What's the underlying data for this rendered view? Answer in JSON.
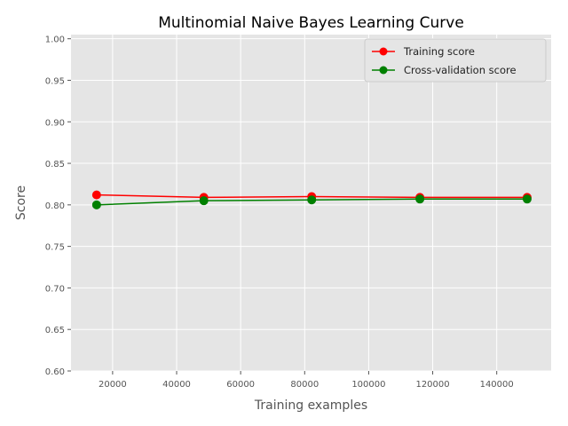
{
  "chart_data": {
    "type": "line",
    "title": "Multinomial Naive Bayes Learning Curve",
    "xlabel": "Training examples",
    "ylabel": "Score",
    "xlim": [
      7000,
      157000
    ],
    "ylim": [
      0.6,
      1.005
    ],
    "xticks": [
      20000,
      40000,
      60000,
      80000,
      100000,
      120000,
      140000
    ],
    "yticks": [
      0.6,
      0.65,
      0.7,
      0.75,
      0.8,
      0.85,
      0.9,
      0.95,
      1.0
    ],
    "grid": true,
    "legend_position": "top-right",
    "background_color": "#e5e5e5",
    "series": [
      {
        "name": "Training score",
        "color": "#ff0000",
        "x": [
          15000,
          48500,
          82200,
          116000,
          149500
        ],
        "y": [
          0.812,
          0.809,
          0.81,
          0.809,
          0.809
        ]
      },
      {
        "name": "Cross-validation score",
        "color": "#008000",
        "x": [
          15000,
          48500,
          82200,
          116000,
          149500
        ],
        "y": [
          0.8,
          0.805,
          0.806,
          0.807,
          0.807
        ]
      }
    ]
  }
}
